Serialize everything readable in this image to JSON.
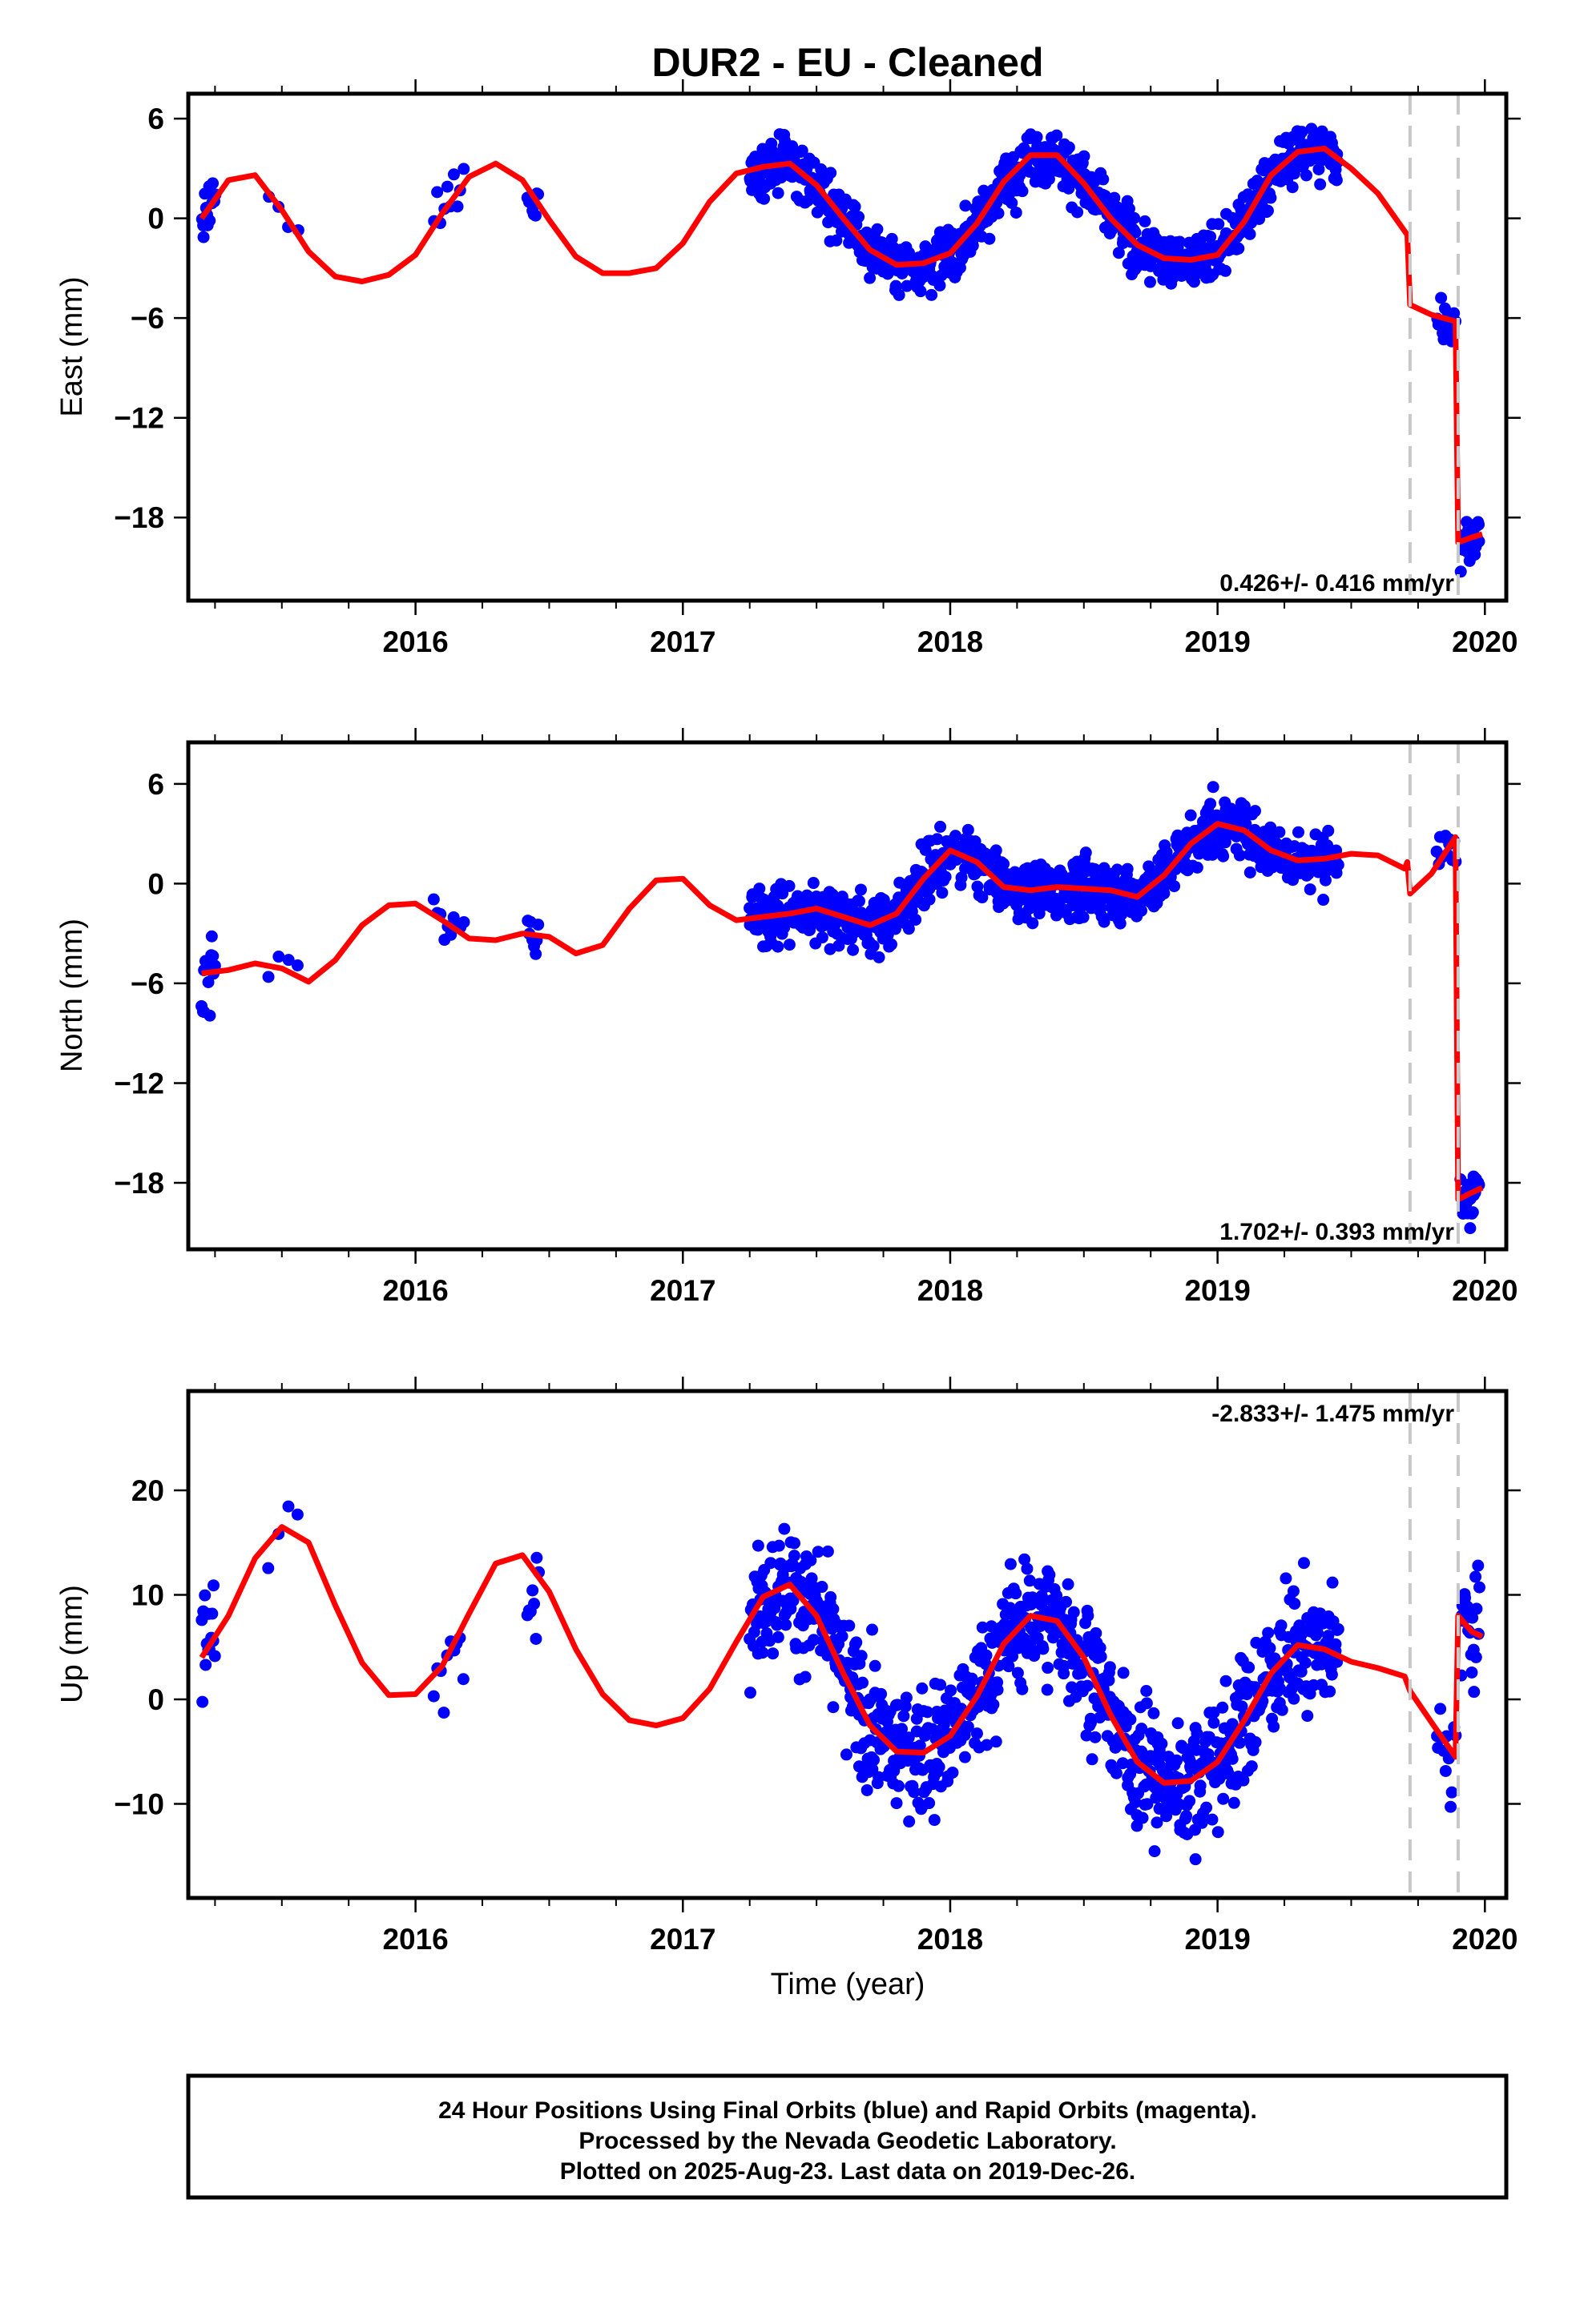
{
  "chart_data": [
    {
      "type": "scatter",
      "title": "DUR2  - EU - Cleaned",
      "ylabel": "East (mm)",
      "xlabel": "",
      "xlim": [
        2015.15,
        2020.08
      ],
      "ylim": [
        -23.0,
        7.5
      ],
      "yticks": [
        6,
        0,
        -6,
        -12,
        -18
      ],
      "xticks": [
        2016,
        2017,
        2018,
        2019,
        2020
      ],
      "rate_text": "0.426+/- 0.416 mm/yr",
      "rate_position": "bottom-right",
      "grid": false,
      "offsets": [
        2019.72,
        2019.9
      ],
      "model": {
        "name": "model fit",
        "color": "#ff0000",
        "x": [
          2015.2,
          2015.3,
          2015.4,
          2015.5,
          2015.6,
          2015.7,
          2015.8,
          2015.9,
          2016.0,
          2016.1,
          2016.2,
          2016.3,
          2016.4,
          2016.5,
          2016.6,
          2016.7,
          2016.8,
          2016.9,
          2017.0,
          2017.1,
          2017.2,
          2017.3,
          2017.4,
          2017.5,
          2017.6,
          2017.7,
          2017.8,
          2017.9,
          2018.0,
          2018.1,
          2018.2,
          2018.3,
          2018.4,
          2018.5,
          2018.6,
          2018.7,
          2018.8,
          2018.9,
          2019.0,
          2019.1,
          2019.2,
          2019.3,
          2019.4,
          2019.5,
          2019.6,
          2019.71,
          2019.72,
          2019.8,
          2019.89,
          2019.9,
          2019.95,
          2019.99
        ],
        "y": [
          0.0,
          2.3,
          2.6,
          0.5,
          -2.0,
          -3.5,
          -3.8,
          -3.4,
          -2.2,
          0.3,
          2.5,
          3.3,
          2.3,
          -0.1,
          -2.3,
          -3.3,
          -3.3,
          -3.0,
          -1.5,
          1.0,
          2.7,
          3.1,
          3.3,
          2.0,
          0.0,
          -1.9,
          -2.8,
          -2.7,
          -2.1,
          -0.3,
          2.2,
          3.8,
          3.8,
          2.1,
          0.0,
          -1.6,
          -2.4,
          -2.5,
          -2.2,
          -0.2,
          2.6,
          4.0,
          4.2,
          3.0,
          1.5,
          -1.0,
          -5.2,
          -5.8,
          -6.2,
          -19.5,
          -19.2,
          -19.0
        ]
      },
      "observations": {
        "name": "24 Hour Positions",
        "color": "#0000ff",
        "segments": [
          {
            "start": 2015.2,
            "end": 2015.25,
            "n": 14,
            "noise": 1.2
          },
          {
            "start": 2015.45,
            "end": 2015.56,
            "n": 4,
            "noise": 0.6
          },
          {
            "start": 2016.07,
            "end": 2016.18,
            "n": 10,
            "noise": 1.3
          },
          {
            "start": 2016.42,
            "end": 2016.46,
            "n": 8,
            "noise": 1.0
          },
          {
            "start": 2017.25,
            "end": 2019.45,
            "n": 880,
            "noise": 1.15
          },
          {
            "start": 2019.82,
            "end": 2019.89,
            "n": 14,
            "noise": 1.1
          },
          {
            "start": 2019.91,
            "end": 2019.98,
            "n": 22,
            "noise": 1.2
          }
        ]
      }
    },
    {
      "type": "scatter",
      "title": "",
      "ylabel": "North (mm)",
      "xlabel": "",
      "xlim": [
        2015.15,
        2020.08
      ],
      "ylim": [
        -22.0,
        8.5
      ],
      "yticks": [
        6,
        0,
        -6,
        -12,
        -18
      ],
      "xticks": [
        2016,
        2017,
        2018,
        2019,
        2020
      ],
      "rate_text": "1.702+/- 0.393 mm/yr",
      "rate_position": "bottom-right",
      "grid": false,
      "offsets": [
        2019.72,
        2019.9
      ],
      "model": {
        "name": "model fit",
        "color": "#ff0000",
        "x": [
          2015.2,
          2015.3,
          2015.4,
          2015.5,
          2015.6,
          2015.7,
          2015.8,
          2015.9,
          2016.0,
          2016.1,
          2016.2,
          2016.3,
          2016.4,
          2016.5,
          2016.6,
          2016.7,
          2016.8,
          2016.9,
          2017.0,
          2017.1,
          2017.2,
          2017.3,
          2017.4,
          2017.5,
          2017.6,
          2017.7,
          2017.8,
          2017.9,
          2018.0,
          2018.1,
          2018.2,
          2018.3,
          2018.4,
          2018.5,
          2018.6,
          2018.7,
          2018.8,
          2018.9,
          2019.0,
          2019.1,
          2019.2,
          2019.3,
          2019.4,
          2019.5,
          2019.6,
          2019.7,
          2019.71,
          2019.72,
          2019.8,
          2019.89,
          2019.9,
          2019.95,
          2019.99
        ],
        "y": [
          -5.4,
          -5.2,
          -4.8,
          -5.1,
          -5.9,
          -4.6,
          -2.5,
          -1.3,
          -1.2,
          -2.2,
          -3.3,
          -3.4,
          -3.0,
          -3.2,
          -4.2,
          -3.7,
          -1.5,
          0.2,
          0.3,
          -1.3,
          -2.2,
          -2.0,
          -1.8,
          -1.5,
          -2.0,
          -2.5,
          -1.8,
          0.3,
          2.0,
          1.3,
          -0.2,
          -0.4,
          -0.2,
          -0.3,
          -0.4,
          -0.8,
          0.5,
          2.4,
          3.6,
          3.2,
          2.0,
          1.4,
          1.5,
          1.8,
          1.7,
          0.9,
          1.3,
          -0.6,
          0.6,
          2.8,
          -19.0,
          -18.6,
          -18.3
        ]
      },
      "observations": {
        "name": "24 Hour Positions",
        "color": "#0000ff",
        "segments": [
          {
            "start": 2015.2,
            "end": 2015.25,
            "n": 14,
            "noise": 1.6
          },
          {
            "start": 2015.45,
            "end": 2015.56,
            "n": 4,
            "noise": 1.0
          },
          {
            "start": 2016.07,
            "end": 2016.18,
            "n": 10,
            "noise": 1.3
          },
          {
            "start": 2016.42,
            "end": 2016.46,
            "n": 8,
            "noise": 0.8
          },
          {
            "start": 2017.25,
            "end": 2019.45,
            "n": 880,
            "noise": 1.2
          },
          {
            "start": 2019.82,
            "end": 2019.89,
            "n": 12,
            "noise": 1.0
          },
          {
            "start": 2019.91,
            "end": 2019.98,
            "n": 22,
            "noise": 1.0
          }
        ]
      }
    },
    {
      "type": "scatter",
      "title": "",
      "ylabel": "Up (mm)",
      "xlabel": "Time (year)",
      "xlim": [
        2015.15,
        2020.08
      ],
      "ylim": [
        -19.0,
        29.5
      ],
      "yticks": [
        20,
        10,
        0,
        -10
      ],
      "xticks": [
        2016,
        2017,
        2018,
        2019,
        2020
      ],
      "rate_text": "-2.833+/- 1.475 mm/yr",
      "rate_position": "top-right",
      "grid": false,
      "offsets": [
        2019.72,
        2019.9
      ],
      "model": {
        "name": "model fit",
        "color": "#ff0000",
        "x": [
          2015.2,
          2015.3,
          2015.4,
          2015.5,
          2015.6,
          2015.7,
          2015.8,
          2015.9,
          2016.0,
          2016.1,
          2016.2,
          2016.3,
          2016.4,
          2016.5,
          2016.6,
          2016.7,
          2016.8,
          2016.9,
          2017.0,
          2017.1,
          2017.2,
          2017.3,
          2017.4,
          2017.5,
          2017.6,
          2017.7,
          2017.8,
          2017.9,
          2018.0,
          2018.1,
          2018.2,
          2018.3,
          2018.4,
          2018.5,
          2018.6,
          2018.7,
          2018.8,
          2018.9,
          2019.0,
          2019.1,
          2019.2,
          2019.3,
          2019.4,
          2019.5,
          2019.6,
          2019.7,
          2019.71,
          2019.72,
          2019.8,
          2019.89,
          2019.9,
          2019.95,
          2019.99
        ],
        "y": [
          4.0,
          8.0,
          13.5,
          16.5,
          15.0,
          9.0,
          3.5,
          0.4,
          0.5,
          3.2,
          8.2,
          13.0,
          13.8,
          10.3,
          4.8,
          0.5,
          -2.0,
          -2.5,
          -1.8,
          1.0,
          5.5,
          9.8,
          11.0,
          8.0,
          2.5,
          -2.5,
          -5.0,
          -5.1,
          -3.5,
          0.3,
          5.3,
          8.0,
          7.5,
          4.0,
          -1.5,
          -6.0,
          -8.0,
          -7.8,
          -6.0,
          -2.0,
          2.5,
          5.2,
          4.8,
          3.6,
          3.0,
          2.2,
          1.5,
          0.8,
          -2.2,
          -5.5,
          8.0,
          6.5,
          6.0
        ]
      },
      "observations": {
        "name": "24 Hour Positions",
        "color": "#0000ff",
        "segments": [
          {
            "start": 2015.2,
            "end": 2015.25,
            "n": 14,
            "noise": 4.0
          },
          {
            "start": 2015.45,
            "end": 2015.56,
            "n": 4,
            "noise": 2.5
          },
          {
            "start": 2016.07,
            "end": 2016.18,
            "n": 10,
            "noise": 3.0
          },
          {
            "start": 2016.42,
            "end": 2016.46,
            "n": 8,
            "noise": 5.0
          },
          {
            "start": 2017.25,
            "end": 2019.45,
            "n": 880,
            "noise": 4.2
          },
          {
            "start": 2019.82,
            "end": 2019.89,
            "n": 12,
            "noise": 4.0
          },
          {
            "start": 2019.91,
            "end": 2019.98,
            "n": 22,
            "noise": 4.0
          }
        ]
      }
    }
  ],
  "footer": {
    "line1": "24 Hour Positions Using Final Orbits (blue) and Rapid Orbits (magenta).",
    "line2": "Processed by the Nevada Geodetic Laboratory.",
    "line3": "Plotted on 2025-Aug-23. Last data on 2019-Dec-26."
  }
}
